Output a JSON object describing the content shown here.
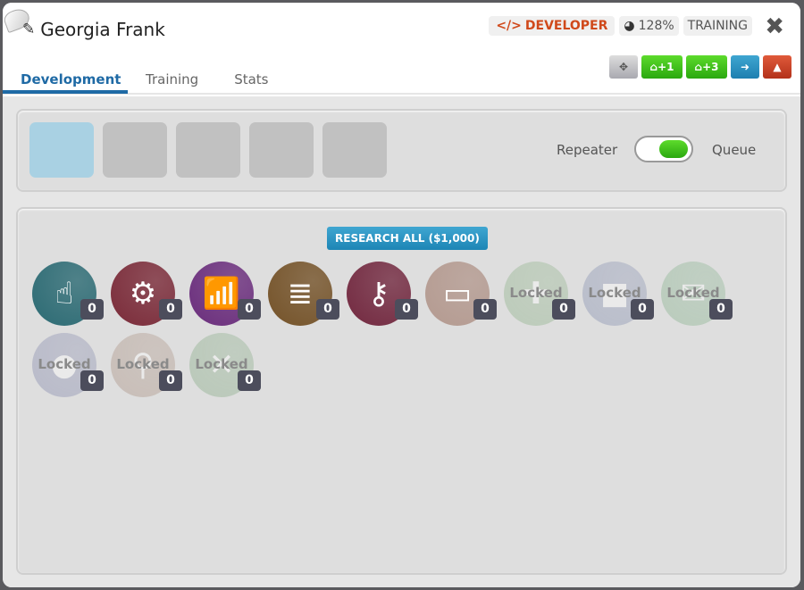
{
  "window": {
    "title": "Georgia Frank",
    "role": "DEVELOPER",
    "speed": "128%",
    "status": "TRAINING"
  },
  "toolbar": {
    "move": "✥",
    "house1": "+1",
    "house3": "+3",
    "exit": "➜",
    "fire": "🔥"
  },
  "tabs": [
    {
      "label": "Development",
      "active": true
    },
    {
      "label": "Training"
    },
    {
      "label": "Stats"
    }
  ],
  "queue": {
    "left_label": "Repeater",
    "right_label": "Queue",
    "toggle_on": true
  },
  "research_all": "RESEARCH ALL ($1,000)",
  "locked_label": "Locked",
  "nodes": [
    {
      "icon": "pointer-hand-icon",
      "glyph": "☝",
      "color": "#2b6a73",
      "count": "0",
      "locked": false
    },
    {
      "icon": "gears-icon",
      "glyph": "⚙",
      "color": "#7a2a38",
      "count": "0",
      "locked": false
    },
    {
      "icon": "wifi-icon",
      "glyph": "📶",
      "color": "#6a2d7c",
      "count": "0",
      "locked": false
    },
    {
      "icon": "database-icon",
      "glyph": "≣",
      "color": "#745228",
      "count": "0",
      "locked": false
    },
    {
      "icon": "key-icon",
      "glyph": "⚷",
      "color": "#72283f",
      "count": "0",
      "locked": false
    },
    {
      "icon": "hard-drive-icon",
      "glyph": "▭",
      "color": "#b49a90",
      "count": "0",
      "locked": false
    },
    {
      "icon": "puzzle-icon",
      "glyph": "✚",
      "color": "#86ad80",
      "count": "0",
      "locked": true
    },
    {
      "icon": "video-camera-icon",
      "glyph": "■",
      "color": "#7d88ab",
      "count": "0",
      "locked": true
    },
    {
      "icon": "envelope-icon",
      "glyph": "✉",
      "color": "#7fae86",
      "count": "0",
      "locked": true
    },
    {
      "icon": "globe-icon",
      "glyph": "●",
      "color": "#7d82a8",
      "count": "0",
      "locked": true
    },
    {
      "icon": "search-icon",
      "glyph": "⚲",
      "color": "#a58a7a",
      "count": "0",
      "locked": true
    },
    {
      "icon": "compress-icon",
      "glyph": "✕",
      "color": "#7fa67e",
      "count": "0",
      "locked": true
    }
  ],
  "colors": {
    "accent": "#1f6aa5",
    "developer": "#d0491b",
    "green": "#3cc01a",
    "blue": "#1d85b5",
    "red": "#c23a1e"
  }
}
